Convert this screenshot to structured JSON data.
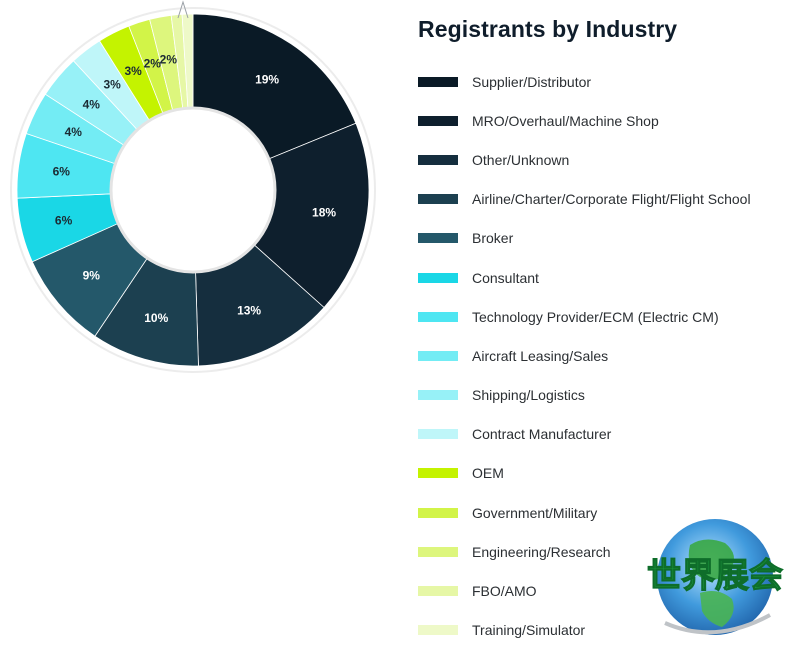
{
  "chart_data": {
    "type": "pie",
    "title": "Registrants by Industry",
    "categories": [
      "Supplier/Distributor",
      "MRO/Overhaul/Machine Shop",
      "Other/Unknown",
      "Airline/Charter/Corporate Flight/Flight School",
      "Broker",
      "Consultant",
      "Technology Provider/ECM (Electric CM)",
      "Aircraft Leasing/Sales",
      "Shipping/Logistics",
      "Contract Manufacturer",
      "OEM",
      "Government/Military",
      "Engineering/Research",
      "FBO/AMO",
      "Training/Simulator"
    ],
    "values": [
      19,
      18,
      13,
      10,
      9,
      6,
      6,
      4,
      4,
      3,
      3,
      2,
      2,
      1,
      1
    ],
    "data_labels": [
      "19%",
      "18%",
      "13%",
      "10%",
      "9%",
      "6%",
      "6%",
      "4%",
      "4%",
      "3%",
      "3%",
      "2%",
      "2%",
      "",
      ""
    ],
    "colors": [
      "#0a1a26",
      "#0e1f2d",
      "#152e3e",
      "#1c4050",
      "#24586a",
      "#1ad7e6",
      "#4ee6f2",
      "#73ecf4",
      "#97f1f7",
      "#bff6f9",
      "#c4f300",
      "#d2f448",
      "#ddf67d",
      "#e6f7a6",
      "#eef9c8"
    ],
    "legend_position": "right"
  },
  "watermark": {
    "text": "世界展会",
    "colors": [
      "#37b24d",
      "#1c6fd9"
    ]
  }
}
